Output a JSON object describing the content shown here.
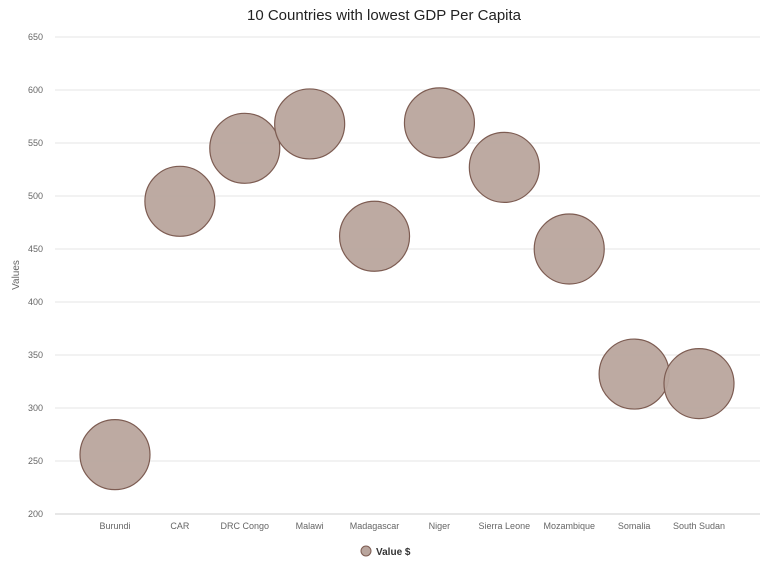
{
  "chart_data": {
    "type": "scatter",
    "title": "10 Countries with lowest GDP Per Capita",
    "ylabel": "Values",
    "xlabel": "",
    "categories": [
      "Burundi",
      "CAR",
      "DRC Congo",
      "Malawi",
      "Madagascar",
      "Niger",
      "Sierra Leone",
      "Mozambique",
      "Somalia",
      "South Sudan"
    ],
    "series": [
      {
        "name": "Value $",
        "values": [
          256,
          495,
          545,
          568,
          462,
          569,
          527,
          450,
          332,
          323
        ]
      }
    ],
    "ylim": [
      200,
      650
    ],
    "yticks": [
      200,
      250,
      300,
      350,
      400,
      450,
      500,
      550,
      600,
      650
    ],
    "grid": true,
    "legend_position": "bottom-center",
    "colors": {
      "bubble_fill": "#b9a59d",
      "bubble_stroke": "#7d5c52"
    }
  }
}
